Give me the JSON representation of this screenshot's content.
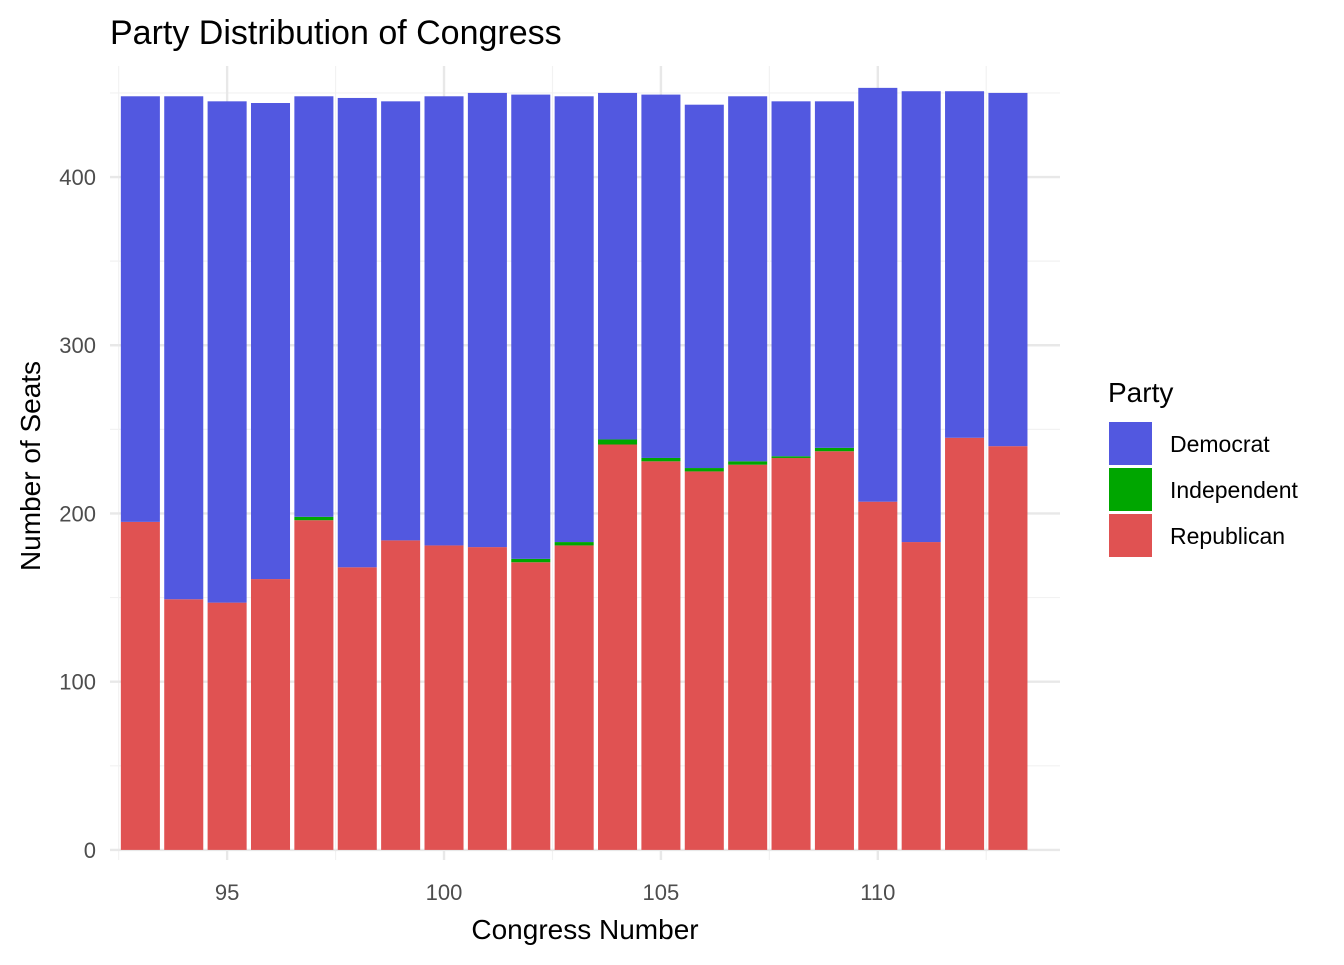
{
  "chart_data": {
    "type": "bar",
    "stacked": true,
    "title": "Party Distribution of Congress",
    "xlabel": "Congress Number",
    "ylabel": "Number of Seats",
    "x": [
      93,
      94,
      95,
      96,
      97,
      98,
      99,
      100,
      101,
      102,
      103,
      104,
      105,
      106,
      107,
      108,
      109,
      110,
      111,
      112,
      113
    ],
    "xticks": [
      95,
      100,
      105,
      110
    ],
    "yticks": [
      0,
      100,
      200,
      300,
      400
    ],
    "xlim": [
      92.3,
      114.2
    ],
    "ylim": [
      -6,
      466
    ],
    "grid": true,
    "series": [
      {
        "name": "Republican",
        "color": "#e05252",
        "values": [
          195,
          149,
          147,
          161,
          196,
          168,
          184,
          181,
          180,
          171,
          181,
          241,
          231,
          225,
          229,
          233,
          237,
          207,
          183,
          245,
          240
        ]
      },
      {
        "name": "Independent",
        "color": "#00a600",
        "values": [
          0,
          0,
          0,
          0,
          2,
          0,
          0,
          0,
          0,
          2,
          2,
          3,
          2,
          2,
          2,
          1,
          2,
          0,
          0,
          0,
          0
        ]
      },
      {
        "name": "Democrat",
        "color": "#5258e0",
        "values": [
          253,
          299,
          298,
          283,
          250,
          279,
          261,
          267,
          270,
          276,
          265,
          206,
          216,
          216,
          217,
          211,
          206,
          246,
          268,
          206,
          210
        ]
      }
    ],
    "legend": {
      "title": "Party",
      "position": "right",
      "entries": [
        {
          "label": "Democrat",
          "color": "#5258e0"
        },
        {
          "label": "Independent",
          "color": "#00a600"
        },
        {
          "label": "Republican",
          "color": "#e05252"
        }
      ]
    }
  }
}
